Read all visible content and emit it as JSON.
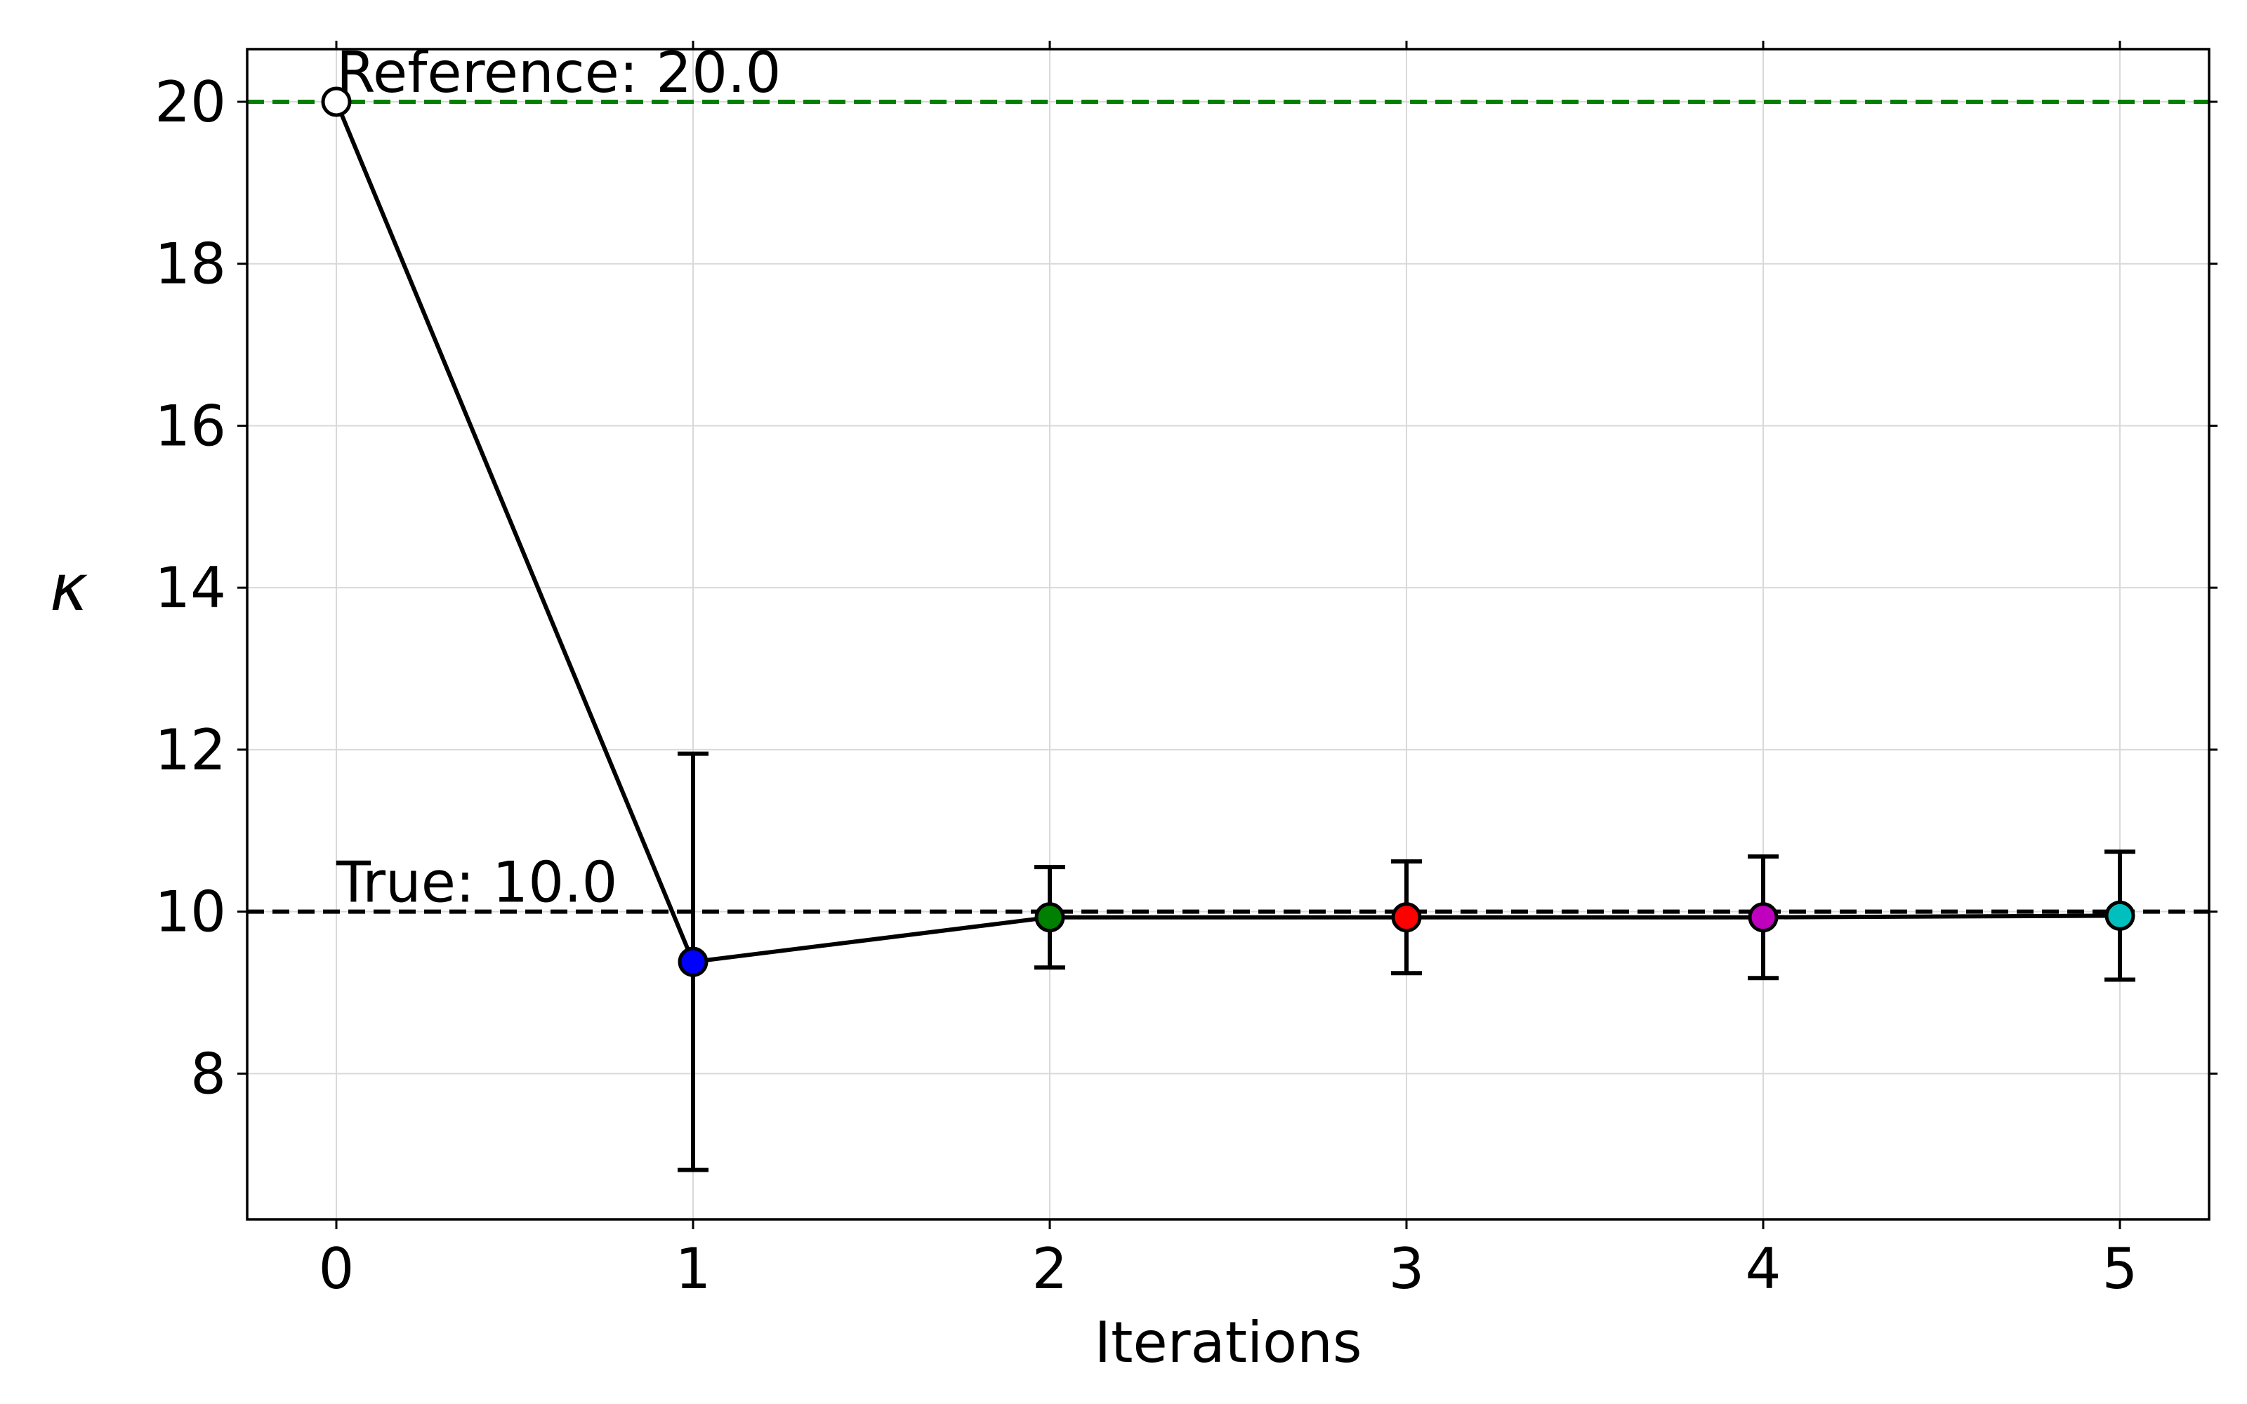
{
  "chart_data": {
    "type": "line",
    "xlabel": "Iterations",
    "ylabel": "κ",
    "xlim": [
      -0.25,
      5.25
    ],
    "ylim": [
      6.2,
      20.65
    ],
    "x_ticks": [
      0,
      1,
      2,
      3,
      4,
      5
    ],
    "y_ticks": [
      8,
      10,
      12,
      14,
      16,
      18,
      20
    ],
    "grid": true,
    "series": [
      {
        "x": [
          0,
          1,
          2,
          3,
          4,
          5
        ],
        "y": [
          20.0,
          9.38,
          9.93,
          9.93,
          9.93,
          9.95
        ],
        "yerr": [
          0,
          2.57,
          0.62,
          0.69,
          0.75,
          0.79
        ],
        "line_color": "#000000",
        "marker_colors": [
          "#ffffff",
          "#0000ff",
          "#008000",
          "#ff0000",
          "#bf00bf",
          "#00bfbf"
        ]
      }
    ],
    "reference_lines": [
      {
        "y": 20.0,
        "label": "Reference: 20.0",
        "color": "#008000",
        "style": "dashed"
      },
      {
        "y": 10.0,
        "label": "True: 10.0",
        "color": "#000000",
        "style": "dashed"
      }
    ]
  }
}
